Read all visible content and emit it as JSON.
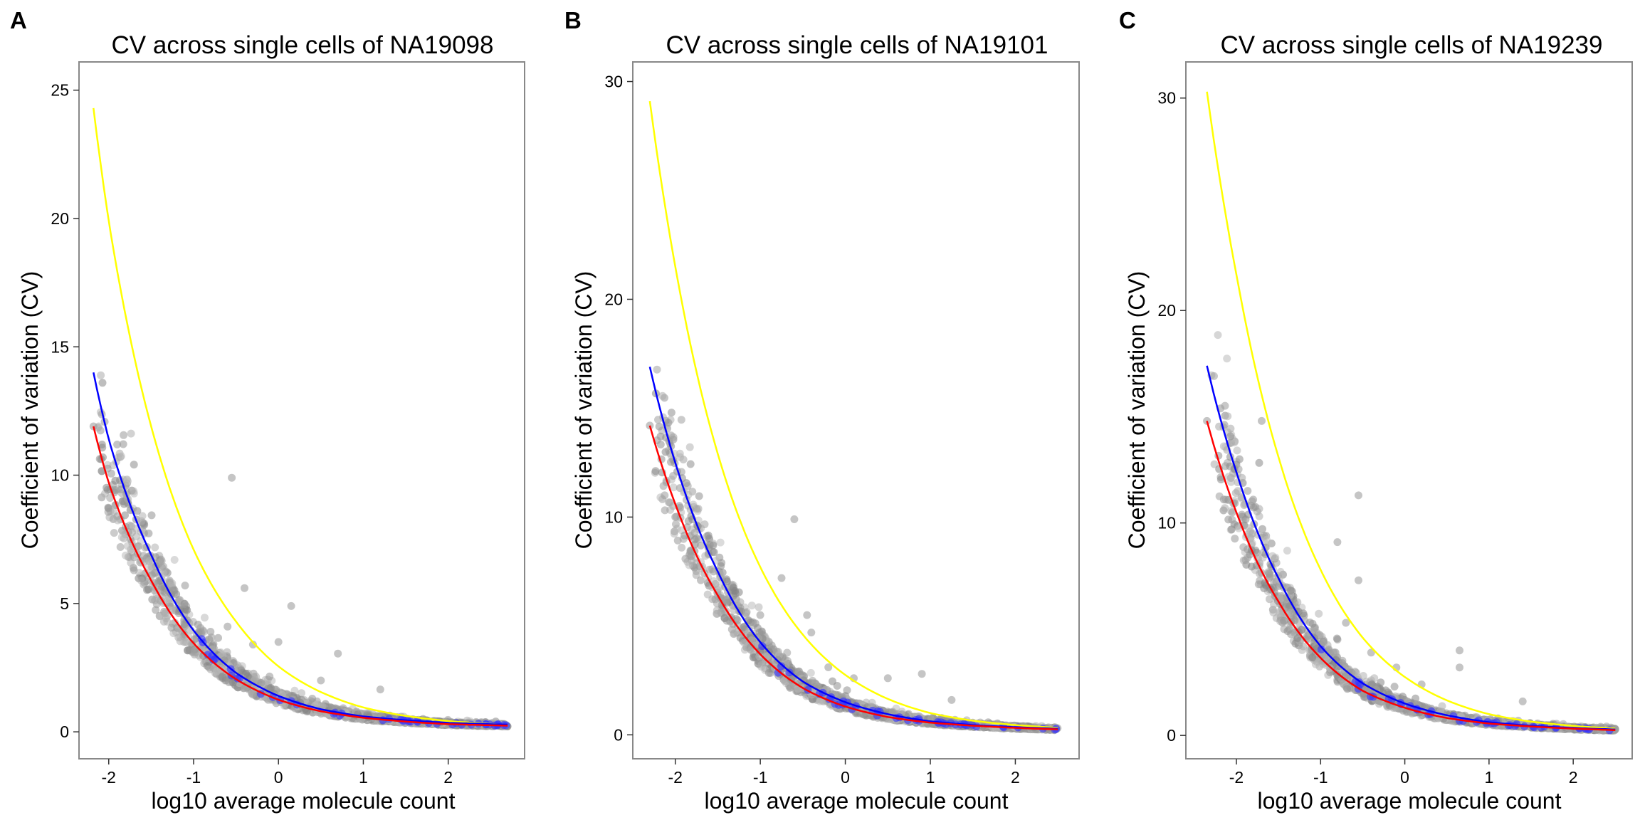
{
  "chart_data": [
    {
      "type": "scatter",
      "panel_label": "A",
      "title": "CV across single cells of NA19098",
      "xlabel": "log10 average molecule count",
      "ylabel": "Coefficient of variation (CV)",
      "xlim": [
        -2.35,
        2.9
      ],
      "ylim": [
        -1.05,
        26.1
      ],
      "x_ticks": [
        -2,
        -1,
        0,
        1,
        2
      ],
      "y_ticks": [
        0,
        5,
        10,
        15,
        20,
        25
      ],
      "grid": false,
      "curve_x_range": [
        -2.18,
        2.7
      ],
      "curves": [
        {
          "color": "#FFFF00",
          "points": [
            [
              -2.18,
              24.3
            ],
            [
              -2.0,
              19.9
            ],
            [
              -1.5,
              11.9
            ],
            [
              -1.0,
              7.1
            ],
            [
              -0.5,
              4.3
            ],
            [
              0.0,
              2.55
            ],
            [
              0.5,
              1.55
            ],
            [
              1.0,
              0.95
            ],
            [
              1.5,
              0.62
            ],
            [
              2.0,
              0.42
            ],
            [
              2.7,
              0.27
            ]
          ]
        },
        {
          "color": "#0000FF",
          "points": [
            [
              -2.18,
              14.0
            ],
            [
              -2.0,
              11.4
            ],
            [
              -1.5,
              6.9
            ],
            [
              -1.0,
              3.95
            ],
            [
              -0.5,
              2.3
            ],
            [
              0.0,
              1.4
            ],
            [
              0.5,
              0.88
            ],
            [
              1.0,
              0.6
            ],
            [
              1.5,
              0.45
            ],
            [
              2.0,
              0.35
            ],
            [
              2.7,
              0.28
            ]
          ]
        },
        {
          "color": "#FF0000",
          "points": [
            [
              -2.18,
              11.9
            ],
            [
              -2.0,
              9.7
            ],
            [
              -1.5,
              5.9
            ],
            [
              -1.0,
              3.45
            ],
            [
              -0.5,
              2.05
            ],
            [
              0.0,
              1.25
            ],
            [
              0.5,
              0.8
            ],
            [
              1.0,
              0.55
            ],
            [
              1.5,
              0.4
            ],
            [
              2.0,
              0.3
            ],
            [
              2.7,
              0.24
            ]
          ]
        }
      ],
      "outliers": [
        [
          -2.18,
          11.9
        ],
        [
          -1.9,
          8.4
        ],
        [
          -1.7,
          6.8
        ],
        [
          -1.55,
          7.2
        ],
        [
          -1.45,
          6.2
        ],
        [
          -1.3,
          5.5
        ],
        [
          -1.1,
          5.7
        ],
        [
          -0.55,
          9.9
        ],
        [
          -0.4,
          5.6
        ],
        [
          -0.3,
          3.4
        ],
        [
          0.0,
          3.5
        ],
        [
          0.15,
          4.9
        ],
        [
          0.7,
          3.05
        ],
        [
          1.2,
          1.65
        ],
        [
          0.5,
          2.0
        ],
        [
          -0.6,
          4.1
        ],
        [
          -0.8,
          3.9
        ]
      ],
      "cloud_color": "#9E9E9E",
      "highlight_color": "#3333FF"
    },
    {
      "type": "scatter",
      "panel_label": "B",
      "title": "CV across single cells of NA19101",
      "xlabel": "log10 average molecule count",
      "ylabel": "Coefficient of variation (CV)",
      "xlim": [
        -2.5,
        2.75
      ],
      "ylim": [
        -1.1,
        30.9
      ],
      "x_ticks": [
        -2,
        -1,
        0,
        1,
        2
      ],
      "y_ticks": [
        0,
        10,
        20,
        30
      ],
      "grid": false,
      "curve_x_range": [
        -2.3,
        2.5
      ],
      "curves": [
        {
          "color": "#FFFF00",
          "points": [
            [
              -2.3,
              29.1
            ],
            [
              -2.0,
              21.5
            ],
            [
              -1.5,
              12.9
            ],
            [
              -1.0,
              7.7
            ],
            [
              -0.5,
              4.6
            ],
            [
              0.0,
              2.75
            ],
            [
              0.5,
              1.65
            ],
            [
              1.0,
              1.0
            ],
            [
              1.5,
              0.65
            ],
            [
              2.0,
              0.45
            ],
            [
              2.5,
              0.32
            ]
          ]
        },
        {
          "color": "#0000FF",
          "points": [
            [
              -2.3,
              16.9
            ],
            [
              -2.0,
              12.5
            ],
            [
              -1.5,
              7.5
            ],
            [
              -1.0,
              4.25
            ],
            [
              -0.5,
              2.45
            ],
            [
              0.0,
              1.5
            ],
            [
              0.5,
              0.95
            ],
            [
              1.0,
              0.62
            ],
            [
              1.5,
              0.45
            ],
            [
              2.0,
              0.35
            ],
            [
              2.5,
              0.28
            ]
          ]
        },
        {
          "color": "#FF0000",
          "points": [
            [
              -2.3,
              14.2
            ],
            [
              -2.0,
              10.6
            ],
            [
              -1.5,
              6.4
            ],
            [
              -1.0,
              3.7
            ],
            [
              -0.5,
              2.15
            ],
            [
              0.0,
              1.3
            ],
            [
              0.5,
              0.82
            ],
            [
              1.0,
              0.56
            ],
            [
              1.5,
              0.42
            ],
            [
              2.0,
              0.32
            ],
            [
              2.5,
              0.25
            ]
          ]
        }
      ],
      "outliers": [
        [
          -2.3,
          14.2
        ],
        [
          -2.0,
          10.0
        ],
        [
          -1.7,
          7.1
        ],
        [
          -1.55,
          7.5
        ],
        [
          -1.4,
          6.2
        ],
        [
          -0.75,
          7.2
        ],
        [
          -0.6,
          9.9
        ],
        [
          -0.45,
          5.5
        ],
        [
          -0.4,
          4.7
        ],
        [
          0.1,
          2.6
        ],
        [
          0.5,
          2.6
        ],
        [
          0.9,
          2.8
        ],
        [
          1.25,
          1.6
        ],
        [
          -1.0,
          5.5
        ],
        [
          -0.2,
          3.1
        ]
      ],
      "cloud_color": "#9E9E9E",
      "highlight_color": "#3333FF"
    },
    {
      "type": "scatter",
      "panel_label": "C",
      "title": "CV across single cells of NA19239",
      "xlabel": "log10 average molecule count",
      "ylabel": "Coefficient of variation (CV)",
      "xlim": [
        -2.6,
        2.7
      ],
      "ylim": [
        -1.1,
        31.7
      ],
      "x_ticks": [
        -2,
        -1,
        0,
        1,
        2
      ],
      "y_ticks": [
        0,
        10,
        20,
        30
      ],
      "grid": false,
      "curve_x_range": [
        -2.35,
        2.5
      ],
      "curves": [
        {
          "color": "#FFFF00",
          "points": [
            [
              -2.35,
              30.3
            ],
            [
              -2.0,
              21.7
            ],
            [
              -1.5,
              13.1
            ],
            [
              -1.0,
              7.8
            ],
            [
              -0.5,
              4.6
            ],
            [
              0.0,
              2.75
            ],
            [
              0.5,
              1.65
            ],
            [
              1.0,
              1.0
            ],
            [
              1.5,
              0.65
            ],
            [
              2.0,
              0.45
            ],
            [
              2.5,
              0.32
            ]
          ]
        },
        {
          "color": "#0000FF",
          "points": [
            [
              -2.35,
              17.4
            ],
            [
              -2.0,
              12.4
            ],
            [
              -1.5,
              7.4
            ],
            [
              -1.0,
              4.2
            ],
            [
              -0.5,
              2.45
            ],
            [
              0.0,
              1.5
            ],
            [
              0.5,
              0.95
            ],
            [
              1.0,
              0.62
            ],
            [
              1.5,
              0.45
            ],
            [
              2.0,
              0.35
            ],
            [
              2.5,
              0.28
            ]
          ]
        },
        {
          "color": "#FF0000",
          "points": [
            [
              -2.35,
              14.8
            ],
            [
              -2.0,
              10.5
            ],
            [
              -1.5,
              6.3
            ],
            [
              -1.0,
              3.65
            ],
            [
              -0.5,
              2.1
            ],
            [
              0.0,
              1.3
            ],
            [
              0.5,
              0.82
            ],
            [
              1.0,
              0.56
            ],
            [
              1.5,
              0.42
            ],
            [
              2.0,
              0.32
            ],
            [
              2.5,
              0.25
            ]
          ]
        }
      ],
      "outliers": [
        [
          -2.35,
          14.8
        ],
        [
          -2.05,
          10.5
        ],
        [
          -1.8,
          11.1
        ],
        [
          -1.7,
          14.8
        ],
        [
          -1.6,
          7.5
        ],
        [
          -1.4,
          6.5
        ],
        [
          -0.55,
          11.3
        ],
        [
          -0.8,
          9.1
        ],
        [
          -0.55,
          7.3
        ],
        [
          -0.7,
          5.3
        ],
        [
          -0.4,
          3.9
        ],
        [
          0.65,
          4.0
        ],
        [
          0.65,
          3.2
        ],
        [
          1.4,
          1.6
        ],
        [
          -0.1,
          3.2
        ],
        [
          0.2,
          2.4
        ]
      ],
      "cloud_color": "#9E9E9E",
      "highlight_color": "#3333FF"
    }
  ]
}
